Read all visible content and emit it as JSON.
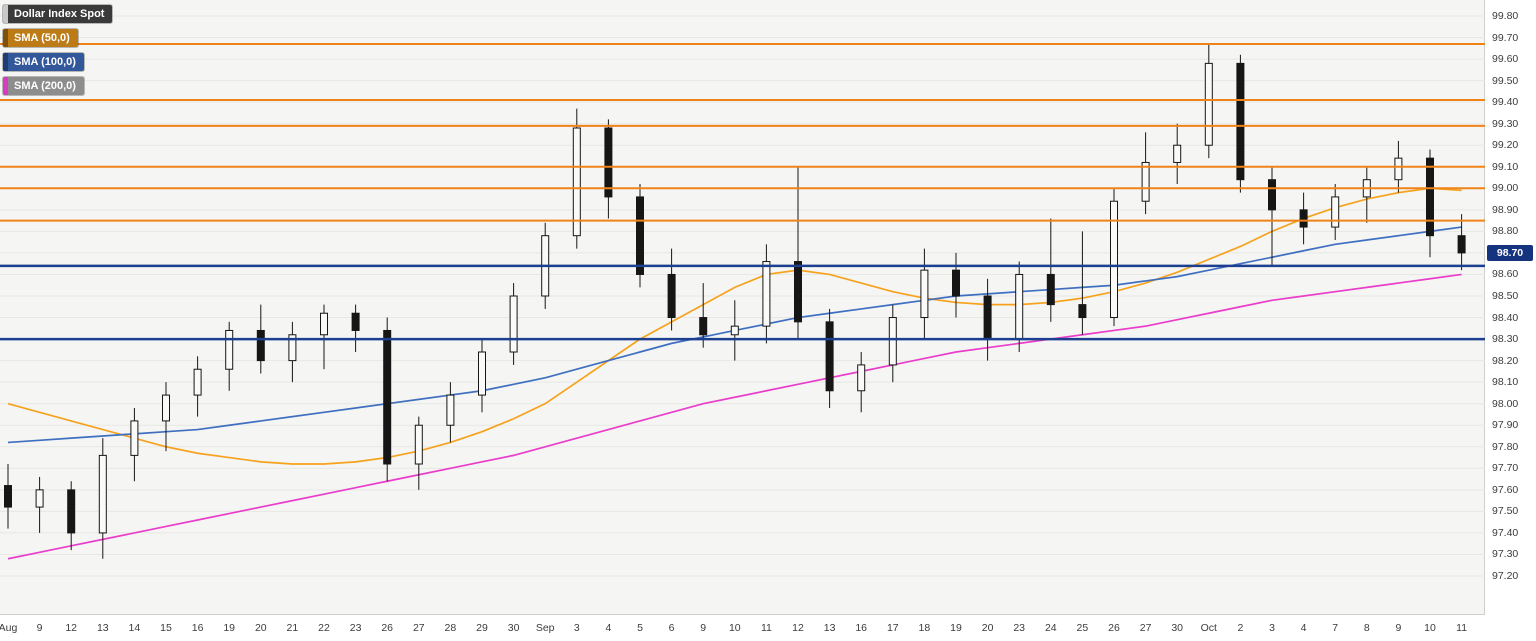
{
  "legend": {
    "title_chip": {
      "label": "Dollar Index Spot",
      "bg": "#3a3a3a",
      "accent": "#c9c9c9"
    },
    "items": [
      {
        "label": "SMA (50,0)",
        "bg": "#bc7b16",
        "accent": "#7e5106"
      },
      {
        "label": "SMA (100,0)",
        "bg": "#33579b",
        "accent": "#1f3c73"
      },
      {
        "label": "SMA (200,0)",
        "bg": "#8d8d8d",
        "accent": "#d83ac0"
      }
    ]
  },
  "price_tag": {
    "bg": "#16337f"
  },
  "chart_data": {
    "type": "candlestick",
    "title": "Dollar Index Spot",
    "last_price": 98.7,
    "last_price_label": "98.70",
    "style": {
      "bg": "#f5f5f3",
      "grid_color": "#e7e7e4",
      "candle_color": "#161616",
      "up_fill": "#fafafa",
      "down_fill": "#161616"
    },
    "y_axis": {
      "min": 97.2,
      "max": 99.8,
      "step": 0.1,
      "ticks": [
        "99.80",
        "99.70",
        "99.60",
        "99.50",
        "99.40",
        "99.30",
        "99.20",
        "99.10",
        "99.00",
        "98.90",
        "98.80",
        "98.70",
        "98.60",
        "98.50",
        "98.40",
        "98.30",
        "98.20",
        "98.10",
        "98.00",
        "97.90",
        "97.80",
        "97.70",
        "97.60",
        "97.50",
        "97.40",
        "97.30",
        "97.20"
      ]
    },
    "x_labels": [
      "Aug",
      "9",
      "12",
      "13",
      "14",
      "15",
      "16",
      "19",
      "20",
      "21",
      "22",
      "23",
      "26",
      "27",
      "28",
      "29",
      "30",
      "Sep",
      "3",
      "4",
      "5",
      "6",
      "9",
      "10",
      "11",
      "12",
      "13",
      "16",
      "17",
      "18",
      "19",
      "20",
      "23",
      "24",
      "25",
      "26",
      "27",
      "30",
      "Oct",
      "2",
      "3",
      "4",
      "7",
      "8",
      "9",
      "10",
      "11"
    ],
    "horizontal_lines": [
      {
        "name": "level-99-67",
        "value": 99.67,
        "color": "#ef8318",
        "width": 2
      },
      {
        "name": "level-99-41",
        "value": 99.41,
        "color": "#ef8318",
        "width": 2
      },
      {
        "name": "level-99-29",
        "value": 99.29,
        "color": "#ef8318",
        "width": 2
      },
      {
        "name": "level-99-10",
        "value": 99.1,
        "color": "#ef8318",
        "width": 2
      },
      {
        "name": "level-99-00",
        "value": 99.0,
        "color": "#ef8318",
        "width": 2
      },
      {
        "name": "level-98-85",
        "value": 98.85,
        "color": "#ef8318",
        "width": 2
      },
      {
        "name": "level-98-64",
        "value": 98.64,
        "color": "#1d3f8f",
        "width": 2.5
      },
      {
        "name": "level-98-30",
        "value": 98.3,
        "color": "#1d3f8f",
        "width": 2.5
      }
    ],
    "overlays": [
      {
        "name": "SMA (50,0)",
        "color": "#f6a21d",
        "values": [
          98.0,
          97.96,
          97.92,
          97.88,
          97.84,
          97.8,
          97.77,
          97.75,
          97.73,
          97.72,
          97.72,
          97.73,
          97.75,
          97.78,
          97.82,
          97.87,
          97.93,
          98.0,
          98.1,
          98.2,
          98.3,
          98.38,
          98.46,
          98.54,
          98.6,
          98.62,
          98.6,
          98.56,
          98.52,
          98.49,
          98.47,
          98.46,
          98.46,
          98.47,
          98.49,
          98.52,
          98.56,
          98.61,
          98.67,
          98.73,
          98.8,
          98.86,
          98.91,
          98.95,
          98.98,
          99.0,
          98.99
        ]
      },
      {
        "name": "SMA (100,0)",
        "color": "#3f6fc1",
        "values": [
          97.82,
          97.83,
          97.84,
          97.85,
          97.86,
          97.87,
          97.88,
          97.9,
          97.92,
          97.94,
          97.96,
          97.98,
          98.0,
          98.02,
          98.04,
          98.06,
          98.09,
          98.12,
          98.16,
          98.2,
          98.24,
          98.28,
          98.31,
          98.34,
          98.37,
          98.4,
          98.42,
          98.44,
          98.46,
          98.48,
          98.5,
          98.51,
          98.52,
          98.53,
          98.54,
          98.55,
          98.57,
          98.59,
          98.62,
          98.65,
          98.68,
          98.71,
          98.74,
          98.76,
          98.78,
          98.8,
          98.82
        ]
      },
      {
        "name": "SMA (200,0)",
        "color": "#ea3dcb",
        "values": [
          97.28,
          97.31,
          97.34,
          97.37,
          97.4,
          97.43,
          97.46,
          97.49,
          97.52,
          97.55,
          97.58,
          97.61,
          97.64,
          97.67,
          97.7,
          97.73,
          97.76,
          97.8,
          97.84,
          97.88,
          97.92,
          97.96,
          98.0,
          98.03,
          98.06,
          98.09,
          98.12,
          98.15,
          98.18,
          98.21,
          98.24,
          98.26,
          98.28,
          98.3,
          98.32,
          98.34,
          98.36,
          98.39,
          98.42,
          98.45,
          98.48,
          98.5,
          98.52,
          98.54,
          98.56,
          98.58,
          98.6
        ]
      }
    ],
    "ohlc": [
      {
        "t": "Aug 8",
        "o": 97.62,
        "h": 97.72,
        "l": 97.42,
        "c": 97.52
      },
      {
        "t": "Aug 9",
        "o": 97.52,
        "h": 97.66,
        "l": 97.4,
        "c": 97.6
      },
      {
        "t": "Aug 12",
        "o": 97.6,
        "h": 97.64,
        "l": 97.32,
        "c": 97.4
      },
      {
        "t": "Aug 13",
        "o": 97.4,
        "h": 97.84,
        "l": 97.28,
        "c": 97.76
      },
      {
        "t": "Aug 14",
        "o": 97.76,
        "h": 97.98,
        "l": 97.64,
        "c": 97.92
      },
      {
        "t": "Aug 15",
        "o": 97.92,
        "h": 98.1,
        "l": 97.78,
        "c": 98.04
      },
      {
        "t": "Aug 16",
        "o": 98.04,
        "h": 98.22,
        "l": 97.94,
        "c": 98.16
      },
      {
        "t": "Aug 19",
        "o": 98.16,
        "h": 98.38,
        "l": 98.06,
        "c": 98.34
      },
      {
        "t": "Aug 20",
        "o": 98.34,
        "h": 98.46,
        "l": 98.14,
        "c": 98.2
      },
      {
        "t": "Aug 21",
        "o": 98.2,
        "h": 98.38,
        "l": 98.1,
        "c": 98.32
      },
      {
        "t": "Aug 22",
        "o": 98.32,
        "h": 98.46,
        "l": 98.16,
        "c": 98.42
      },
      {
        "t": "Aug 23",
        "o": 98.42,
        "h": 98.46,
        "l": 98.24,
        "c": 98.34
      },
      {
        "t": "Aug 26",
        "o": 98.34,
        "h": 98.4,
        "l": 97.64,
        "c": 97.72
      },
      {
        "t": "Aug 27",
        "o": 97.72,
        "h": 97.94,
        "l": 97.6,
        "c": 97.9
      },
      {
        "t": "Aug 28",
        "o": 97.9,
        "h": 98.1,
        "l": 97.82,
        "c": 98.04
      },
      {
        "t": "Aug 29",
        "o": 98.04,
        "h": 98.3,
        "l": 97.96,
        "c": 98.24
      },
      {
        "t": "Aug 30",
        "o": 98.24,
        "h": 98.56,
        "l": 98.18,
        "c": 98.5
      },
      {
        "t": "Sep 2",
        "o": 98.5,
        "h": 98.84,
        "l": 98.44,
        "c": 98.78
      },
      {
        "t": "Sep 3",
        "o": 98.78,
        "h": 99.37,
        "l": 98.72,
        "c": 99.28
      },
      {
        "t": "Sep 4",
        "o": 99.28,
        "h": 99.32,
        "l": 98.86,
        "c": 98.96
      },
      {
        "t": "Sep 5",
        "o": 98.96,
        "h": 99.02,
        "l": 98.54,
        "c": 98.6
      },
      {
        "t": "Sep 6",
        "o": 98.6,
        "h": 98.72,
        "l": 98.34,
        "c": 98.4
      },
      {
        "t": "Sep 9",
        "o": 98.4,
        "h": 98.56,
        "l": 98.26,
        "c": 98.32
      },
      {
        "t": "Sep 10",
        "o": 98.32,
        "h": 98.48,
        "l": 98.2,
        "c": 98.36
      },
      {
        "t": "Sep 11",
        "o": 98.36,
        "h": 98.74,
        "l": 98.28,
        "c": 98.66
      },
      {
        "t": "Sep 12",
        "o": 98.66,
        "h": 99.1,
        "l": 98.3,
        "c": 98.38
      },
      {
        "t": "Sep 13",
        "o": 98.38,
        "h": 98.44,
        "l": 97.98,
        "c": 98.06
      },
      {
        "t": "Sep 16",
        "o": 98.06,
        "h": 98.24,
        "l": 97.96,
        "c": 98.18
      },
      {
        "t": "Sep 17",
        "o": 98.18,
        "h": 98.46,
        "l": 98.1,
        "c": 98.4
      },
      {
        "t": "Sep 18",
        "o": 98.4,
        "h": 98.72,
        "l": 98.3,
        "c": 98.62
      },
      {
        "t": "Sep 19",
        "o": 98.62,
        "h": 98.7,
        "l": 98.4,
        "c": 98.5
      },
      {
        "t": "Sep 20",
        "o": 98.5,
        "h": 98.58,
        "l": 98.2,
        "c": 98.3
      },
      {
        "t": "Sep 23",
        "o": 98.3,
        "h": 98.66,
        "l": 98.24,
        "c": 98.6
      },
      {
        "t": "Sep 24",
        "o": 98.6,
        "h": 98.86,
        "l": 98.38,
        "c": 98.46
      },
      {
        "t": "Sep 25",
        "o": 98.46,
        "h": 98.8,
        "l": 98.32,
        "c": 98.4
      },
      {
        "t": "Sep 26",
        "o": 98.4,
        "h": 99.0,
        "l": 98.36,
        "c": 98.94
      },
      {
        "t": "Sep 27",
        "o": 98.94,
        "h": 99.26,
        "l": 98.88,
        "c": 99.12
      },
      {
        "t": "Sep 30",
        "o": 99.12,
        "h": 99.3,
        "l": 99.02,
        "c": 99.2
      },
      {
        "t": "Oct 1",
        "o": 99.2,
        "h": 99.67,
        "l": 99.14,
        "c": 99.58
      },
      {
        "t": "Oct 2",
        "o": 99.58,
        "h": 99.62,
        "l": 98.98,
        "c": 99.04
      },
      {
        "t": "Oct 3",
        "o": 99.04,
        "h": 99.1,
        "l": 98.64,
        "c": 98.9
      },
      {
        "t": "Oct 4",
        "o": 98.9,
        "h": 98.98,
        "l": 98.74,
        "c": 98.82
      },
      {
        "t": "Oct 7",
        "o": 98.82,
        "h": 99.02,
        "l": 98.76,
        "c": 98.96
      },
      {
        "t": "Oct 8",
        "o": 98.96,
        "h": 99.1,
        "l": 98.84,
        "c": 99.04
      },
      {
        "t": "Oct 9",
        "o": 99.04,
        "h": 99.22,
        "l": 98.98,
        "c": 99.14
      },
      {
        "t": "Oct 10",
        "o": 99.14,
        "h": 99.18,
        "l": 98.68,
        "c": 98.78
      },
      {
        "t": "Oct 11",
        "o": 98.78,
        "h": 98.88,
        "l": 98.62,
        "c": 98.7
      }
    ]
  }
}
